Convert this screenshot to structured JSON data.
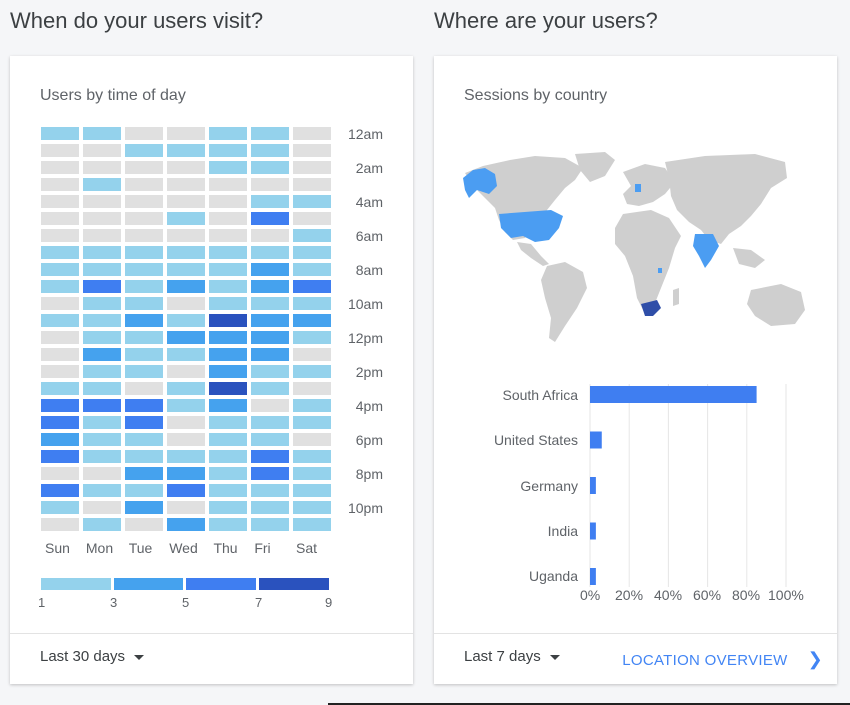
{
  "sections": {
    "left_title": "When do your users visit?",
    "right_title": "Where are your users?"
  },
  "time_card": {
    "title": "Users by time of day",
    "range": "Last 30 days",
    "days": [
      "Sun",
      "Mon",
      "Tue",
      "Wed",
      "Thu",
      "Fri",
      "Sat"
    ],
    "hour_labels": [
      "12am",
      "2am",
      "4am",
      "6am",
      "8am",
      "10am",
      "12pm",
      "2pm",
      "4pm",
      "6pm",
      "8pm",
      "10pm"
    ],
    "legend": [
      "1",
      "3",
      "5",
      "7",
      "9"
    ]
  },
  "country_card": {
    "title": "Sessions by country",
    "range": "Last 7 days",
    "link": "LOCATION OVERVIEW"
  },
  "colors": {
    "level0": "#e0e0e0",
    "level1": "#94d2ec",
    "level2": "#45a2ee",
    "level3": "#3f7ef1",
    "level4": "#2a52be",
    "land": "#cfcfcf",
    "highlight": "#4b9df2",
    "top_country": "#2f4ea8"
  },
  "chart_data": [
    {
      "type": "heatmap",
      "title": "Users by time of day",
      "x": [
        "Sun",
        "Mon",
        "Tue",
        "Wed",
        "Thu",
        "Fri",
        "Sat"
      ],
      "y_tick_labels": [
        "12am",
        "2am",
        "4am",
        "6am",
        "8am",
        "10am",
        "12pm",
        "2pm",
        "4pm",
        "6pm",
        "8pm",
        "10pm"
      ],
      "legend_ticks": [
        1,
        3,
        5,
        7,
        9
      ],
      "values": [
        [
          2,
          2,
          0,
          0,
          2,
          2,
          0
        ],
        [
          0,
          0,
          2,
          2,
          2,
          2,
          0
        ],
        [
          0,
          0,
          0,
          0,
          2,
          2,
          0
        ],
        [
          0,
          2,
          0,
          0,
          0,
          0,
          0
        ],
        [
          0,
          0,
          0,
          0,
          0,
          2,
          2
        ],
        [
          0,
          0,
          0,
          2,
          0,
          6,
          0
        ],
        [
          0,
          0,
          0,
          0,
          0,
          0,
          2
        ],
        [
          2,
          2,
          2,
          2,
          2,
          2,
          2
        ],
        [
          2,
          2,
          2,
          2,
          2,
          5,
          2
        ],
        [
          2,
          6,
          2,
          5,
          2,
          5,
          7
        ],
        [
          0,
          2,
          2,
          0,
          2,
          2,
          2
        ],
        [
          2,
          2,
          5,
          2,
          9,
          5,
          5
        ],
        [
          0,
          2,
          2,
          5,
          5,
          5,
          2
        ],
        [
          0,
          5,
          2,
          2,
          5,
          5,
          0
        ],
        [
          0,
          2,
          2,
          0,
          5,
          2,
          2
        ],
        [
          2,
          2,
          0,
          2,
          9,
          2,
          0
        ],
        [
          6,
          6,
          6,
          2,
          5,
          0,
          2
        ],
        [
          7,
          2,
          6,
          0,
          2,
          2,
          2
        ],
        [
          5,
          2,
          2,
          0,
          2,
          2,
          0
        ],
        [
          7,
          2,
          2,
          2,
          2,
          6,
          2
        ],
        [
          0,
          0,
          5,
          5,
          2,
          6,
          2
        ],
        [
          7,
          2,
          2,
          6,
          2,
          2,
          2
        ],
        [
          2,
          0,
          5,
          0,
          2,
          2,
          2
        ],
        [
          0,
          2,
          0,
          5,
          2,
          2,
          2
        ]
      ]
    },
    {
      "type": "bar",
      "title": "Sessions by country",
      "orientation": "horizontal",
      "categories": [
        "South Africa",
        "United States",
        "Germany",
        "India",
        "Uganda"
      ],
      "values": [
        85,
        6,
        3,
        3,
        3
      ],
      "x_tick_labels": [
        "0%",
        "20%",
        "40%",
        "60%",
        "80%",
        "100%"
      ],
      "xlim": [
        0,
        100
      ],
      "grid": true
    }
  ]
}
